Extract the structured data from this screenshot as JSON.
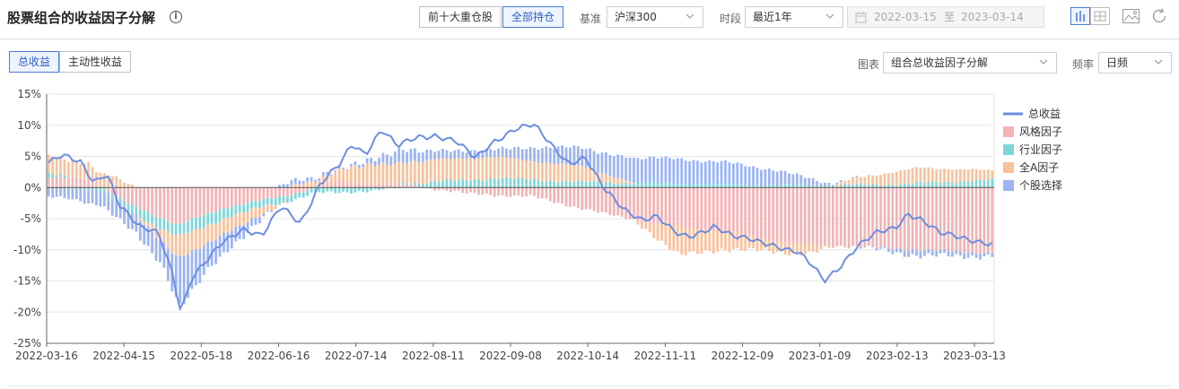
{
  "header": {
    "title": "股票组合的收益因子分解",
    "info_icon": "info-icon",
    "holdings_tabs": [
      "前十大重仓股",
      "全部持仓"
    ],
    "holdings_active": 1,
    "benchmark_label": "基准",
    "benchmark_value": "沪深300",
    "period_label": "时段",
    "period_value": "最近1年",
    "date_start": "2022-03-15",
    "date_sep": "至",
    "date_end": "2023-03-14",
    "tools": [
      "bar-chart-icon",
      "table-icon",
      "image-icon",
      "refresh-icon"
    ]
  },
  "subbar": {
    "return_tabs": [
      "总收益",
      "主动性收益"
    ],
    "return_active": 0,
    "chart_label": "图表",
    "chart_value": "组合总收益因子分解",
    "freq_label": "频率",
    "freq_value": "日频"
  },
  "colors": {
    "total": "#6d8ee0",
    "style": "#f4b3b5",
    "industry": "#7fd6d8",
    "allA": "#f8c29c",
    "stock": "#9bb4f2",
    "accent": "#4a7bd4"
  },
  "chart_data": {
    "type": "bar",
    "stacked": true,
    "ylim": [
      -25,
      15
    ],
    "yticks": [
      "15%",
      "10%",
      "5%",
      "0%",
      "-5%",
      "-10%",
      "-15%",
      "-20%",
      "-25%"
    ],
    "xticks": [
      "2022-03-16",
      "2022-04-15",
      "2022-05-18",
      "2022-06-16",
      "2022-07-14",
      "2022-08-11",
      "2022-09-08",
      "2022-10-14",
      "2022-11-11",
      "2022-12-09",
      "2023-01-09",
      "2023-02-13",
      "2023-03-13"
    ],
    "legend": [
      "总收益",
      "风格因子",
      "行业因子",
      "全A因子",
      "个股选择"
    ],
    "legend_position": "right",
    "grid": true,
    "n_points": 238,
    "line_anchors": [
      [
        0,
        4.0
      ],
      [
        4,
        5.0
      ],
      [
        10,
        4.0
      ],
      [
        14,
        1.0
      ],
      [
        18,
        2.5
      ],
      [
        22,
        -3.0
      ],
      [
        28,
        -6.5
      ],
      [
        34,
        -7.0
      ],
      [
        38,
        -13.0
      ],
      [
        41,
        -20.0
      ],
      [
        44,
        -15.0
      ],
      [
        48,
        -12.5
      ],
      [
        54,
        -8.5
      ],
      [
        60,
        -6.5
      ],
      [
        66,
        -8.0
      ],
      [
        72,
        -3.0
      ],
      [
        78,
        -5.5
      ],
      [
        84,
        0.5
      ],
      [
        90,
        3.5
      ],
      [
        94,
        7.0
      ],
      [
        98,
        5.5
      ],
      [
        103,
        9.5
      ],
      [
        108,
        6.5
      ],
      [
        114,
        8.0
      ],
      [
        120,
        8.5
      ],
      [
        126,
        7.5
      ],
      [
        132,
        4.5
      ],
      [
        138,
        7.5
      ],
      [
        144,
        9.5
      ],
      [
        150,
        10.0
      ],
      [
        156,
        6.5
      ],
      [
        161,
        4.0
      ],
      [
        166,
        5.0
      ],
      [
        172,
        -0.5
      ],
      [
        178,
        -3.5
      ],
      [
        184,
        -5.0
      ],
      [
        188,
        -4.5
      ],
      [
        194,
        -7.5
      ],
      [
        198,
        -8.0
      ],
      [
        206,
        -6.0
      ],
      [
        212,
        -8.0
      ],
      [
        218,
        -8.5
      ],
      [
        224,
        -9.0
      ],
      [
        232,
        -10.5
      ],
      [
        236,
        -12.5
      ],
      [
        240,
        -15.0
      ],
      [
        244,
        -13.0
      ],
      [
        250,
        -9.5
      ],
      [
        256,
        -7.5
      ],
      [
        262,
        -6.5
      ],
      [
        266,
        -4.0
      ],
      [
        270,
        -5.0
      ],
      [
        276,
        -7.5
      ],
      [
        282,
        -8.0
      ],
      [
        288,
        -8.5
      ],
      [
        292,
        -9.0
      ]
    ],
    "bar_anchors": {
      "style": [
        [
          0,
          1.5
        ],
        [
          12,
          1.5
        ],
        [
          24,
          -2.5
        ],
        [
          40,
          -6.0
        ],
        [
          56,
          -3.0
        ],
        [
          72,
          -1.5
        ],
        [
          90,
          1.0
        ],
        [
          110,
          0.5
        ],
        [
          130,
          -1.0
        ],
        [
          150,
          -1.5
        ],
        [
          170,
          -4.0
        ],
        [
          190,
          -6.0
        ],
        [
          210,
          -7.0
        ],
        [
          230,
          -9.0
        ],
        [
          250,
          -9.5
        ],
        [
          270,
          -10.0
        ],
        [
          292,
          -10.5
        ]
      ],
      "industry": [
        [
          0,
          0.6
        ],
        [
          30,
          -1.5
        ],
        [
          45,
          -2.0
        ],
        [
          70,
          -1.0
        ],
        [
          100,
          -0.6
        ],
        [
          120,
          1.0
        ],
        [
          140,
          1.5
        ],
        [
          160,
          1.0
        ],
        [
          175,
          0.8
        ],
        [
          200,
          0.6
        ],
        [
          230,
          0.3
        ],
        [
          260,
          0.5
        ],
        [
          292,
          1.2
        ]
      ],
      "allA": [
        [
          0,
          3.0
        ],
        [
          20,
          2.0
        ],
        [
          40,
          -3.5
        ],
        [
          60,
          -2.0
        ],
        [
          80,
          0.8
        ],
        [
          100,
          3.0
        ],
        [
          115,
          3.5
        ],
        [
          135,
          3.5
        ],
        [
          150,
          3.0
        ],
        [
          165,
          2.5
        ],
        [
          180,
          0.2
        ],
        [
          195,
          -4.5
        ],
        [
          205,
          -3.5
        ],
        [
          220,
          -2.0
        ],
        [
          235,
          -1.5
        ],
        [
          250,
          1.2
        ],
        [
          270,
          2.5
        ],
        [
          292,
          1.5
        ]
      ],
      "stock": [
        [
          0,
          -1.5
        ],
        [
          20,
          -2.5
        ],
        [
          35,
          -3.5
        ],
        [
          41,
          -8.0
        ],
        [
          50,
          -4.0
        ],
        [
          60,
          -2.0
        ],
        [
          75,
          1.0
        ],
        [
          90,
          0.0
        ],
        [
          110,
          2.0
        ],
        [
          130,
          1.0
        ],
        [
          150,
          2.0
        ],
        [
          160,
          3.0
        ],
        [
          170,
          3.0
        ],
        [
          180,
          4.0
        ],
        [
          195,
          4.0
        ],
        [
          210,
          3.5
        ],
        [
          225,
          2.5
        ],
        [
          240,
          0.5
        ],
        [
          260,
          -0.5
        ],
        [
          270,
          -1.0
        ],
        [
          292,
          -0.5
        ]
      ]
    }
  }
}
